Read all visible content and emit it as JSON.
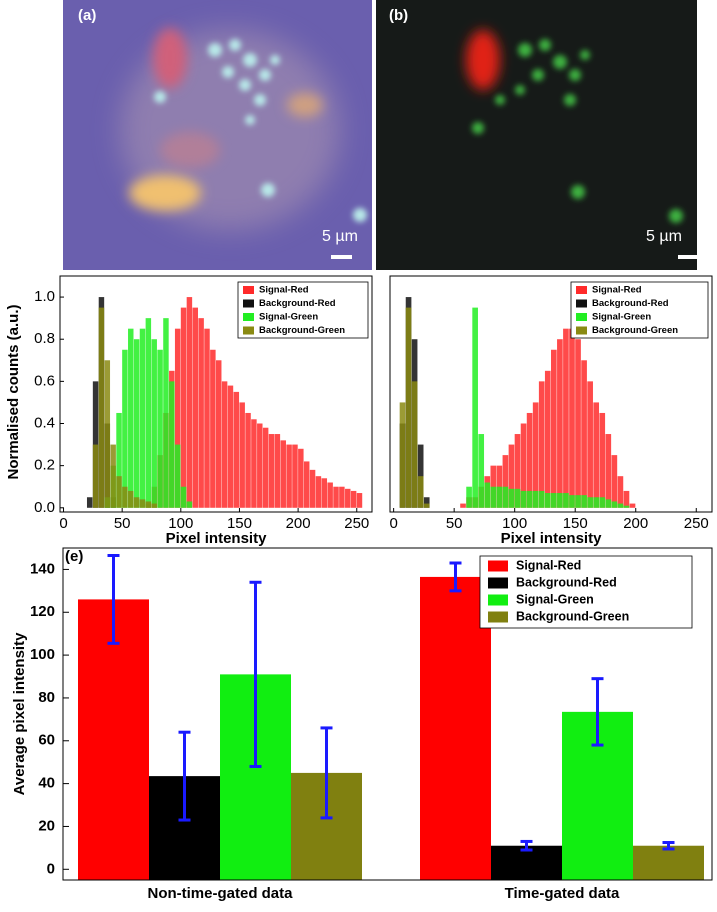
{
  "images": [
    {
      "label": "(a)",
      "scale_bar": "5 µm"
    },
    {
      "label": "(b)",
      "scale_bar": "5 µm"
    }
  ],
  "chart_data": [
    {
      "type": "histogram",
      "xlabel": "Pixel intensity",
      "ylabel": "Normalised counts (a.u.)",
      "xlim": [
        -3,
        263
      ],
      "ylim": [
        -0.02,
        1.1
      ],
      "xticks": [
        0,
        50,
        100,
        150,
        200,
        250
      ],
      "yticks": [
        {
          "value": 0,
          "label": "0.0"
        },
        {
          "value": 0.2,
          "label": "0.2"
        },
        {
          "value": 0.4,
          "label": "0.4"
        },
        {
          "value": 0.6,
          "label": "0.6"
        },
        {
          "value": 0.8,
          "label": "0.8"
        },
        {
          "value": 1,
          "label": "1.0"
        }
      ],
      "legend": "upper right",
      "bins": [
        0,
        5,
        10,
        15,
        20,
        25,
        30,
        35,
        40,
        45,
        50,
        55,
        60,
        65,
        70,
        75,
        80,
        85,
        90,
        95,
        100,
        105,
        110,
        115,
        120,
        125,
        130,
        135,
        140,
        145,
        150,
        155,
        160,
        165,
        170,
        175,
        180,
        185,
        190,
        195,
        200,
        205,
        210,
        215,
        220,
        225,
        230,
        235,
        240,
        245,
        250,
        255
      ],
      "series": [
        {
          "name": "Signal-Red",
          "color": "#ff2a2a",
          "values": [
            0,
            0,
            0,
            0,
            0,
            0,
            0,
            0,
            0,
            0,
            0,
            0,
            0,
            0,
            0.02,
            0.1,
            0.25,
            0.45,
            0.65,
            0.85,
            0.95,
            1.0,
            0.95,
            0.9,
            0.85,
            0.75,
            0.7,
            0.6,
            0.58,
            0.55,
            0.5,
            0.45,
            0.42,
            0.4,
            0.38,
            0.35,
            0.35,
            0.32,
            0.3,
            0.3,
            0.28,
            0.22,
            0.18,
            0.15,
            0.14,
            0.12,
            0.1,
            0.1,
            0.09,
            0.08,
            0.07
          ]
        },
        {
          "name": "Background-Red",
          "color": "#111111",
          "values": [
            0,
            0,
            0,
            0,
            0.05,
            0.6,
            1.0,
            0.4,
            0.05,
            0,
            0,
            0,
            0,
            0,
            0,
            0,
            0,
            0,
            0,
            0,
            0,
            0,
            0,
            0,
            0,
            0,
            0,
            0,
            0,
            0,
            0,
            0,
            0,
            0,
            0,
            0,
            0,
            0,
            0,
            0,
            0,
            0,
            0,
            0,
            0,
            0,
            0,
            0,
            0,
            0,
            0
          ]
        },
        {
          "name": "Signal-Green",
          "color": "#22ee22",
          "values": [
            0,
            0,
            0,
            0,
            0,
            0,
            0,
            0.05,
            0.2,
            0.45,
            0.75,
            0.85,
            0.8,
            0.85,
            0.9,
            0.8,
            0.75,
            0.9,
            0.6,
            0.3,
            0.1,
            0.03,
            0,
            0,
            0,
            0,
            0,
            0,
            0,
            0,
            0,
            0,
            0,
            0,
            0,
            0,
            0,
            0,
            0,
            0,
            0,
            0,
            0,
            0,
            0,
            0,
            0,
            0,
            0,
            0,
            0
          ]
        },
        {
          "name": "Background-Green",
          "color": "#8a8a12",
          "values": [
            0,
            0,
            0,
            0,
            0,
            0.3,
            0.95,
            0.7,
            0.3,
            0.15,
            0.1,
            0.08,
            0.05,
            0.04,
            0.03,
            0.02,
            0,
            0,
            0,
            0,
            0,
            0,
            0,
            0,
            0,
            0,
            0,
            0,
            0,
            0,
            0,
            0,
            0,
            0,
            0,
            0,
            0,
            0,
            0,
            0,
            0,
            0,
            0,
            0,
            0,
            0,
            0,
            0,
            0,
            0,
            0
          ]
        }
      ]
    },
    {
      "type": "histogram",
      "xlabel": "Pixel intensity",
      "xlim": [
        -3,
        263
      ],
      "ylim": [
        -0.02,
        1.1
      ],
      "xticks": [
        0,
        50,
        100,
        150,
        200,
        250
      ],
      "legend": "upper right",
      "bins": [
        0,
        5,
        10,
        15,
        20,
        25,
        30,
        35,
        40,
        45,
        50,
        55,
        60,
        65,
        70,
        75,
        80,
        85,
        90,
        95,
        100,
        105,
        110,
        115,
        120,
        125,
        130,
        135,
        140,
        145,
        150,
        155,
        160,
        165,
        170,
        175,
        180,
        185,
        190,
        195,
        200,
        205,
        210,
        215,
        220,
        225,
        230,
        235,
        240,
        245,
        250,
        255
      ],
      "series": [
        {
          "name": "Signal-Red",
          "color": "#ff2a2a",
          "values": [
            0,
            0,
            0,
            0,
            0,
            0,
            0,
            0,
            0,
            0,
            0,
            0.02,
            0.05,
            0.05,
            0.1,
            0.15,
            0.2,
            0.2,
            0.25,
            0.3,
            0.35,
            0.4,
            0.45,
            0.5,
            0.6,
            0.65,
            0.75,
            0.8,
            0.85,
            0.85,
            0.8,
            0.7,
            0.6,
            0.5,
            0.45,
            0.35,
            0.25,
            0.15,
            0.08,
            0.02,
            0,
            0,
            0,
            0,
            0,
            0,
            0,
            0,
            0,
            0,
            0
          ]
        },
        {
          "name": "Background-Red",
          "color": "#111111",
          "values": [
            0,
            0.4,
            1.0,
            0.8,
            0.3,
            0.05,
            0,
            0,
            0,
            0,
            0,
            0,
            0,
            0,
            0,
            0,
            0,
            0,
            0,
            0,
            0,
            0,
            0,
            0,
            0,
            0,
            0,
            0,
            0,
            0,
            0,
            0,
            0,
            0,
            0,
            0,
            0,
            0,
            0,
            0,
            0,
            0,
            0,
            0,
            0,
            0,
            0,
            0,
            0,
            0,
            0
          ]
        },
        {
          "name": "Signal-Green",
          "color": "#22ee22",
          "values": [
            0,
            0,
            0,
            0,
            0,
            0,
            0,
            0,
            0,
            0,
            0,
            0,
            0.1,
            0.95,
            0.35,
            0.12,
            0.1,
            0.1,
            0.1,
            0.09,
            0.09,
            0.08,
            0.08,
            0.08,
            0.08,
            0.07,
            0.07,
            0.07,
            0.07,
            0.06,
            0.06,
            0.06,
            0.05,
            0.05,
            0.05,
            0.04,
            0.03,
            0.02,
            0.01,
            0,
            0,
            0,
            0,
            0,
            0,
            0,
            0,
            0,
            0,
            0,
            0
          ]
        },
        {
          "name": "Background-Green",
          "color": "#8a8a12",
          "values": [
            0,
            0.5,
            0.95,
            0.6,
            0.15,
            0.02,
            0,
            0,
            0,
            0,
            0,
            0,
            0,
            0,
            0,
            0,
            0,
            0,
            0,
            0,
            0,
            0,
            0,
            0,
            0,
            0,
            0,
            0,
            0,
            0,
            0,
            0,
            0,
            0,
            0,
            0,
            0,
            0,
            0,
            0,
            0,
            0,
            0,
            0,
            0,
            0,
            0,
            0,
            0,
            0,
            0
          ]
        }
      ]
    },
    {
      "type": "bar",
      "label": "(e)",
      "ylabel": "Average pixel intensity",
      "categories": [
        "Non-time-gated data",
        "Time-gated data"
      ],
      "ylim": [
        -5,
        150
      ],
      "yticks": [
        0,
        20,
        40,
        60,
        80,
        100,
        120,
        140
      ],
      "legend": "upper right",
      "error_color": "#1a1aff",
      "series": [
        {
          "name": "Signal-Red",
          "color": "#ff0000",
          "values": [
            126,
            136.5
          ],
          "errors": [
            20.5,
            6.5
          ]
        },
        {
          "name": "Background-Red",
          "color": "#000000",
          "values": [
            43.5,
            11
          ],
          "errors": [
            20.5,
            2
          ]
        },
        {
          "name": "Signal-Green",
          "color": "#11ee11",
          "values": [
            91,
            73.5
          ],
          "errors": [
            43,
            15.5
          ]
        },
        {
          "name": "Background-Green",
          "color": "#808010",
          "values": [
            45,
            11
          ],
          "errors": [
            21,
            1.5
          ]
        }
      ]
    }
  ]
}
